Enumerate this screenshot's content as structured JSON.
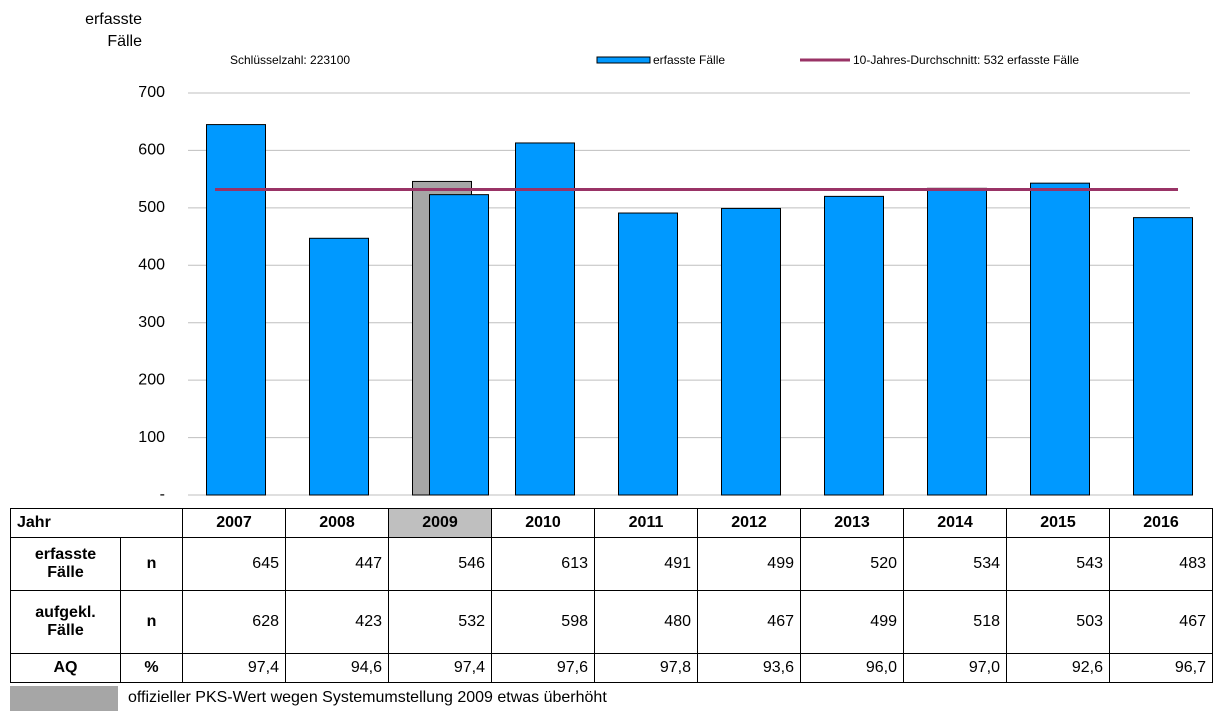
{
  "chart_data": {
    "type": "bar",
    "y_axis_label_lines": [
      "erfasste",
      "Fälle"
    ],
    "annotation": "Schlüsselzahl: 223100",
    "categories": [
      "2007",
      "2008",
      "2009",
      "2010",
      "2011",
      "2012",
      "2013",
      "2014",
      "2015",
      "2016"
    ],
    "series": [
      {
        "name": "erfasste Fälle",
        "color": "#0099ff",
        "values": [
          645,
          447,
          523,
          613,
          491,
          499,
          520,
          534,
          543,
          483
        ]
      },
      {
        "name": "offizieller PKS-Wert wegen Systemumstellung 2009 etwas überhöht",
        "color": "#a6a6a6",
        "values": [
          null,
          null,
          546,
          null,
          null,
          null,
          null,
          null,
          null,
          null
        ]
      }
    ],
    "reference_line": {
      "name": "10-Jahres-Durchschnitt: 532 erfasste Fälle",
      "value": 532,
      "color": "#993366"
    },
    "ylim": [
      0,
      700
    ],
    "yticks": [
      {
        "value": 0,
        "label": "-"
      },
      100,
      200,
      300,
      400,
      500,
      600,
      700
    ],
    "grid": true
  },
  "table": {
    "header": "Jahr",
    "rows": [
      {
        "label": "erfasste Fälle",
        "unit": "n",
        "cells": [
          "645",
          "447",
          "546",
          "613",
          "491",
          "499",
          "520",
          "534",
          "543",
          "483"
        ]
      },
      {
        "label": "aufgekl. Fälle",
        "unit": "n",
        "cells": [
          "628",
          "423",
          "532",
          "598",
          "480",
          "467",
          "499",
          "518",
          "503",
          "467"
        ]
      },
      {
        "label": "AQ",
        "unit": "%",
        "cells": [
          "97,4",
          "94,6",
          "97,4",
          "97,6",
          "97,8",
          "93,6",
          "96,0",
          "97,0",
          "92,6",
          "96,7"
        ]
      }
    ]
  }
}
